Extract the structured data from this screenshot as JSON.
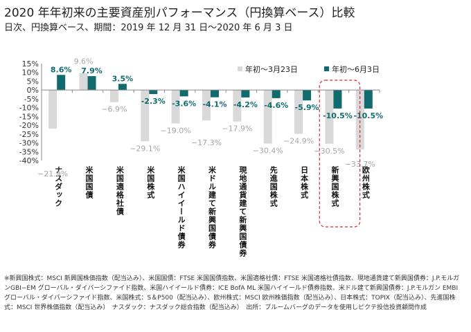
{
  "title": "2020 年年初来の主要資産別パフォーマンス（円換算ベース）比較",
  "subtitle": "日次、円換算ベース、期間：2019 年 12 月 31 日～2020 年 6 月 3 日",
  "note": "※新興国株式：MSCI 新興国株価指数（配当込み）、米国国債：FTSE 米国国債指数、米国適格社債：FTSE 米国適格社債指数、現地通貨建て新興国債券：J.P.モルガンGBI−EM グローバル・ダイバーシファイド指数、米国ハイイールド債券：ICE BofA ML 米国ハイイールド債券指数、米ドル建て新興国債券：J.P.モルガン EMBI グローバル・ダイバーシファイド指数、米国株式：S＆P500（配当込み）、欧州株式：MSCI 欧州株価指数（配当込み）、日本株式：TOPIX（配当込み）、先進国株式：MSCI 世界株価指数（配当込み）　ナスダック：ナスダック総合指数（配当込み）　出所：ブルームバーグのデータを使用しピクテ投信投資顧問作成",
  "chart_data": {
    "type": "bar",
    "categories": [
      "ナスダック",
      "米国国債",
      "米国適格社債",
      "米国株式",
      "米国ハイイールド債券",
      "米ドル建て新興国債券",
      "現地通貨建て新興国債券",
      "先進国株式",
      "日本株式",
      "新興国株式",
      "欧州株式"
    ],
    "series": [
      {
        "name": "年初～3月23日",
        "color": "#d9d9d9",
        "label_color": "#a6a6a6",
        "values": [
          -21.9,
          9.6,
          -6.9,
          -29.1,
          -19.0,
          -17.3,
          -17.9,
          -30.4,
          -24.9,
          -30.5,
          -33.7
        ]
      },
      {
        "name": "年初～6月3日",
        "color": "#116b6e",
        "label_color": "#116b6e",
        "values": [
          8.6,
          7.9,
          3.5,
          -2.3,
          -3.6,
          -4.1,
          -4.2,
          -4.6,
          -5.9,
          -10.5,
          -10.5
        ]
      }
    ],
    "ylim": [
      -40,
      15
    ],
    "yticks": [
      "15%",
      "10%",
      "5%",
      "0%",
      "-5%",
      "-10%",
      "-15%",
      "-20%",
      "-25%",
      "-30%",
      "-35%",
      "-40%"
    ],
    "highlight": "新興国株式",
    "highlight_color": "#d62728",
    "legend": "top-right"
  }
}
